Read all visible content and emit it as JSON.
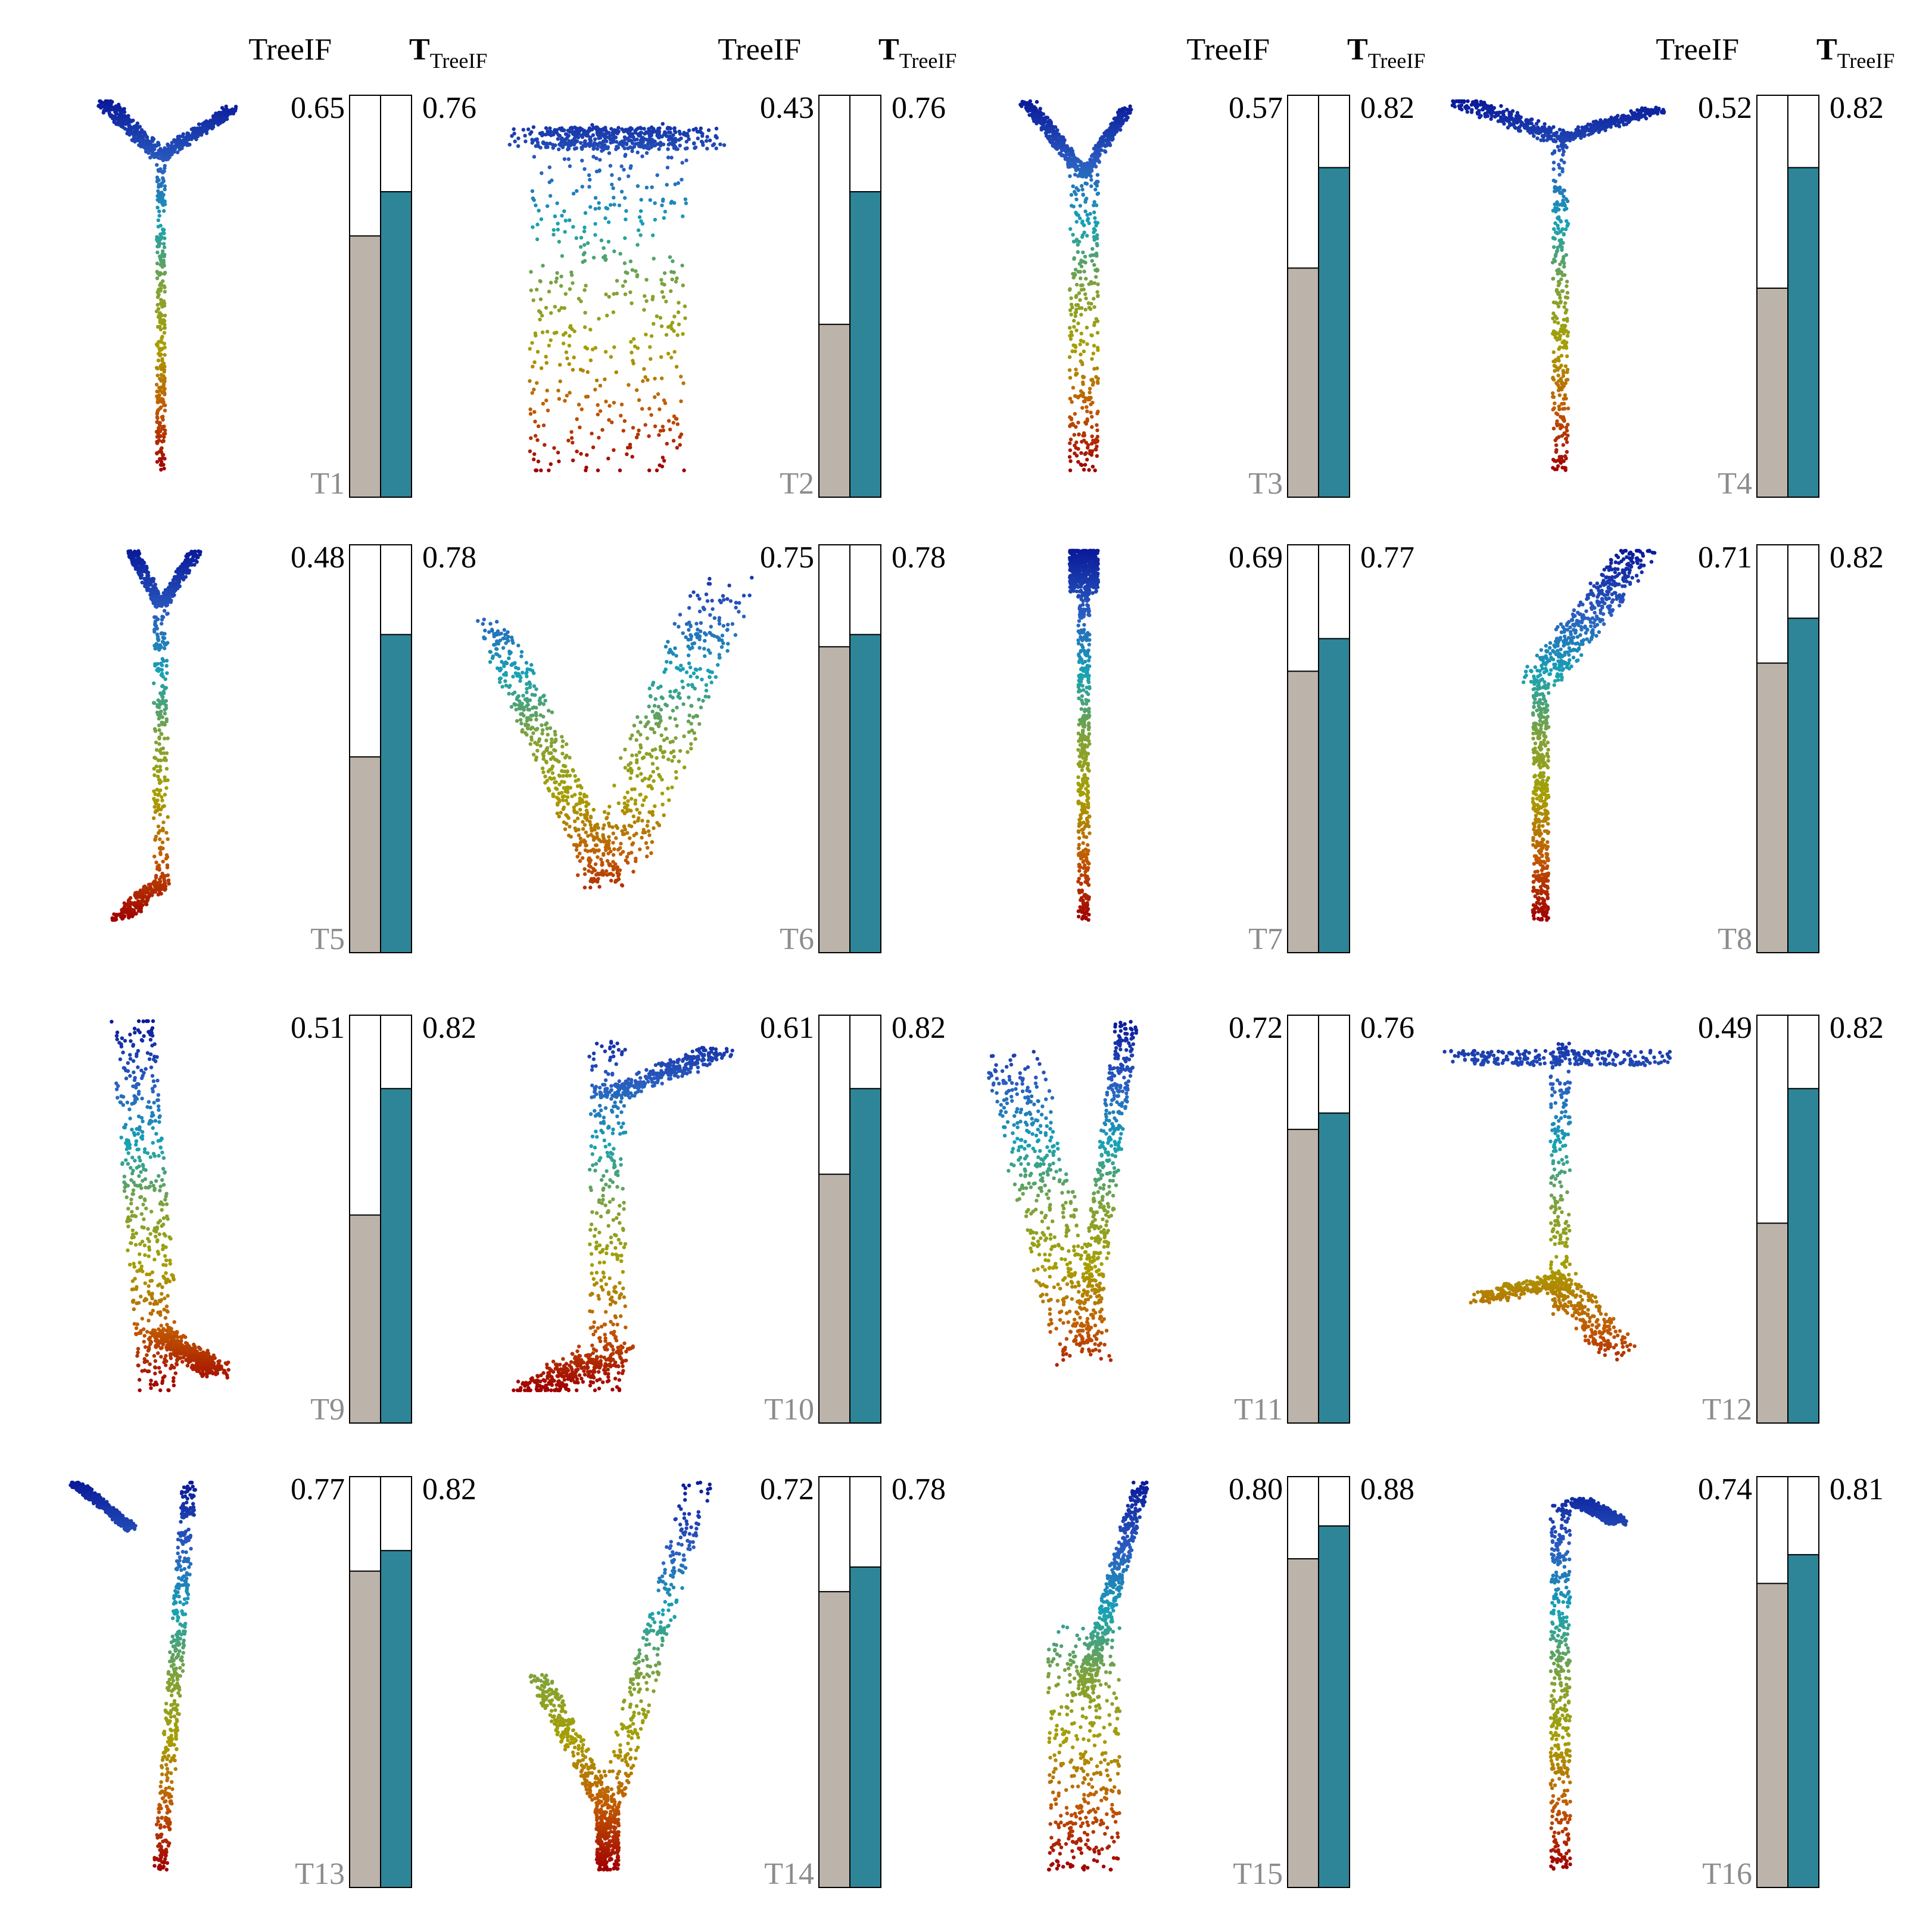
{
  "headers": {
    "left": "TreeIF",
    "right_main": "T",
    "right_sub": "TreeIF"
  },
  "colors": {
    "treeif_bar": "#bcb4aa",
    "ttreeif_bar": "#2e8598",
    "panel_label": "#8c8c8c",
    "trajectory_gradient": [
      "#0a1a9a",
      "#2a5cc0",
      "#17a2b4",
      "#7fa23a",
      "#a79e00",
      "#c15a00",
      "#a00000"
    ]
  },
  "chart_data": {
    "type": "bar",
    "description_items": [
      "TreeIF",
      "T_TreeIF"
    ],
    "ylim": [
      0,
      1
    ],
    "panels": [
      {
        "label": "T1",
        "treeif": 0.65,
        "ttreeif": 0.76,
        "treeif_text": "0.65",
        "ttreeif_text": "0.76"
      },
      {
        "label": "T2",
        "treeif": 0.43,
        "ttreeif": 0.76,
        "treeif_text": "0.43",
        "ttreeif_text": "0.76"
      },
      {
        "label": "T3",
        "treeif": 0.57,
        "ttreeif": 0.82,
        "treeif_text": "0.57",
        "ttreeif_text": "0.82"
      },
      {
        "label": "T4",
        "treeif": 0.52,
        "ttreeif": 0.82,
        "treeif_text": "0.52",
        "ttreeif_text": "0.82"
      },
      {
        "label": "T5",
        "treeif": 0.48,
        "ttreeif": 0.78,
        "treeif_text": "0.48",
        "ttreeif_text": "0.78"
      },
      {
        "label": "T6",
        "treeif": 0.75,
        "ttreeif": 0.78,
        "treeif_text": "0.75",
        "ttreeif_text": "0.78"
      },
      {
        "label": "T7",
        "treeif": 0.69,
        "ttreeif": 0.77,
        "treeif_text": "0.69",
        "ttreeif_text": "0.77"
      },
      {
        "label": "T8",
        "treeif": 0.71,
        "ttreeif": 0.82,
        "treeif_text": "0.71",
        "ttreeif_text": "0.82"
      },
      {
        "label": "T9",
        "treeif": 0.51,
        "ttreeif": 0.82,
        "treeif_text": "0.51",
        "ttreeif_text": "0.82"
      },
      {
        "label": "T10",
        "treeif": 0.61,
        "ttreeif": 0.82,
        "treeif_text": "0.61",
        "ttreeif_text": "0.82"
      },
      {
        "label": "T11",
        "treeif": 0.72,
        "ttreeif": 0.76,
        "treeif_text": "0.72",
        "ttreeif_text": "0.76"
      },
      {
        "label": "T12",
        "treeif": 0.49,
        "ttreeif": 0.82,
        "treeif_text": "0.49",
        "ttreeif_text": "0.82"
      },
      {
        "label": "T13",
        "treeif": 0.77,
        "ttreeif": 0.82,
        "treeif_text": "0.77",
        "ttreeif_text": "0.82"
      },
      {
        "label": "T14",
        "treeif": 0.72,
        "ttreeif": 0.78,
        "treeif_text": "0.72",
        "ttreeif_text": "0.78"
      },
      {
        "label": "T15",
        "treeif": 0.8,
        "ttreeif": 0.88,
        "treeif_text": "0.80",
        "ttreeif_text": "0.88"
      },
      {
        "label": "T16",
        "treeif": 0.74,
        "ttreeif": 0.81,
        "treeif_text": "0.74",
        "ttreeif_text": "0.81"
      }
    ]
  }
}
